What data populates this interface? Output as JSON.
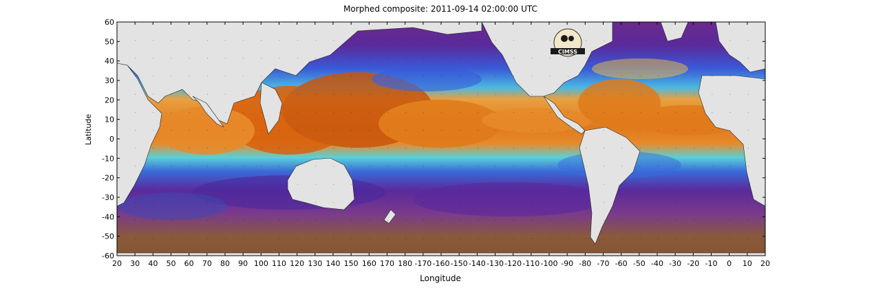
{
  "title": "Morphed composite: 2011-09-14 02:00:00 UTC",
  "xlabel": "Longitude",
  "ylabel": "Latitude",
  "x_ticks": [
    "20",
    "30",
    "40",
    "50",
    "60",
    "70",
    "80",
    "90",
    "100",
    "110",
    "120",
    "130",
    "140",
    "150",
    "160",
    "170",
    "180",
    "-170",
    "-160",
    "-150",
    "-140",
    "-130",
    "-120",
    "-110",
    "-100",
    "-90",
    "-80",
    "-70",
    "-60",
    "-50",
    "-40",
    "-30",
    "-20",
    "-10",
    "0",
    "10",
    "20"
  ],
  "y_ticks": [
    "60",
    "50",
    "40",
    "30",
    "20",
    "10",
    "0",
    "-10",
    "-20",
    "-30",
    "-40",
    "-50",
    "-60"
  ],
  "logo_text": "CIMSS",
  "colors": {
    "land": "#e3e3e3",
    "deep_purple": "#5a1a8c",
    "brown_high_lat": "#8a5a3a",
    "blue": "#2a5adf",
    "cyan": "#3fd0e8",
    "green": "#7be07b",
    "yellow": "#e6dc4a",
    "orange": "#e87a1a",
    "dark_orange": "#c8560c"
  }
}
